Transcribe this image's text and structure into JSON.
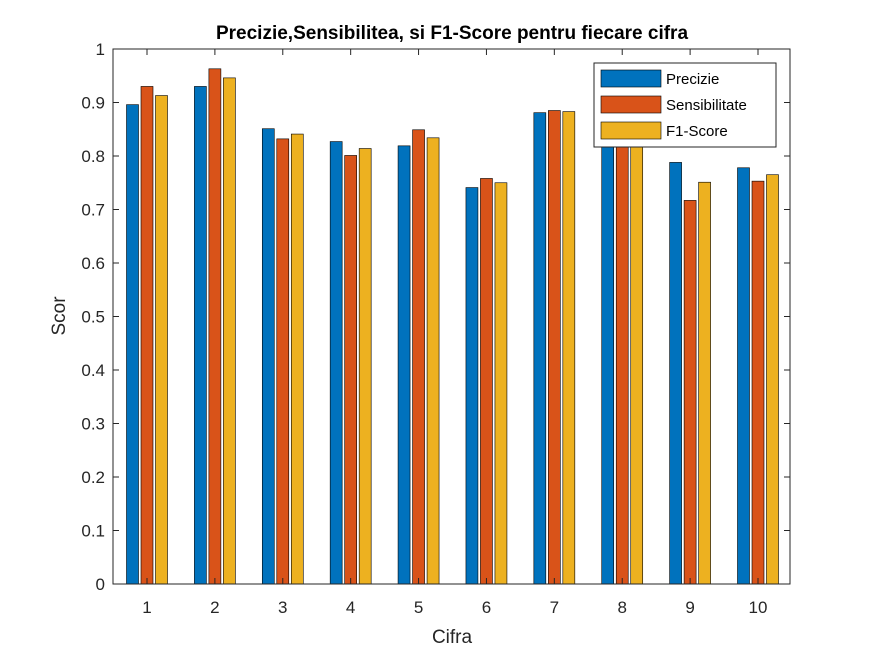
{
  "chart_data": {
    "type": "bar",
    "title": "Precizie,Sensibilitea, si F1-Score pentru fiecare cifra",
    "xlabel": "Cifra",
    "ylabel": "Scor",
    "ylim": [
      0,
      1
    ],
    "yticks": [
      "0",
      "0.1",
      "0.2",
      "0.3",
      "0.4",
      "0.5",
      "0.6",
      "0.7",
      "0.8",
      "0.9",
      "1"
    ],
    "categories": [
      "1",
      "2",
      "3",
      "4",
      "5",
      "6",
      "7",
      "8",
      "9",
      "10"
    ],
    "series": [
      {
        "name": "Precizie",
        "color": "#0072BD",
        "values": [
          0.896,
          0.93,
          0.851,
          0.827,
          0.819,
          0.741,
          0.881,
          0.82,
          0.788,
          0.778
        ]
      },
      {
        "name": "Sensibilitate",
        "color": "#D95319",
        "values": [
          0.93,
          0.963,
          0.832,
          0.801,
          0.849,
          0.758,
          0.885,
          0.82,
          0.717,
          0.753
        ]
      },
      {
        "name": "F1-Score",
        "color": "#EDB120",
        "values": [
          0.913,
          0.946,
          0.841,
          0.814,
          0.834,
          0.75,
          0.883,
          0.82,
          0.751,
          0.765
        ]
      }
    ],
    "grid": false,
    "legend": "top-right"
  }
}
